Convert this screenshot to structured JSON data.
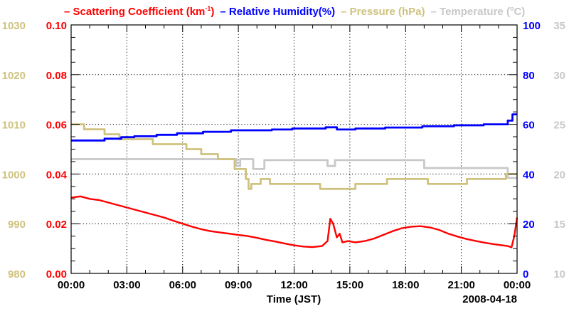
{
  "chart_data": {
    "type": "line",
    "title_parts": [
      {
        "key": "scatter",
        "text": "– Scattering Coefficient (km",
        "sup": "-1",
        "tail": ")",
        "color": "#ff0000"
      },
      {
        "key": "rh",
        "text": "– Relative Humidity(%)",
        "color": "#0000ff"
      },
      {
        "key": "pressure",
        "text": "– Pressure (hPa)",
        "color": "#cfc27e"
      },
      {
        "key": "temp",
        "text": "– Temperature (",
        "sup": "o",
        "tail": "C)",
        "color": "#c8c8c8"
      }
    ],
    "xlabel": "Time (JST)",
    "date_label": "2008-04-18",
    "x_range": [
      0,
      24
    ],
    "x_ticks": [
      0,
      3,
      6,
      9,
      12,
      15,
      18,
      21,
      24
    ],
    "x_tick_labels": [
      "00:00",
      "03:00",
      "06:00",
      "09:00",
      "12:00",
      "15:00",
      "18:00",
      "21:00",
      "00:00"
    ],
    "grid": true,
    "axes": {
      "pressure": {
        "side": "outer-left",
        "range": [
          980,
          1030
        ],
        "ticks": [
          980,
          990,
          1000,
          1010,
          1020,
          1030
        ],
        "labels": [
          "980",
          "990",
          "1000",
          "1010",
          "1020",
          "1030"
        ],
        "color": "#cfc27e"
      },
      "scatter": {
        "side": "inner-left",
        "range": [
          0,
          0.1
        ],
        "ticks": [
          0,
          0.02,
          0.04,
          0.06,
          0.08,
          0.1
        ],
        "labels": [
          "0.00",
          "0.02",
          "0.04",
          "0.06",
          "0.08",
          "0.10"
        ],
        "color": "#ff0000"
      },
      "rh": {
        "side": "inner-right",
        "range": [
          0,
          100
        ],
        "ticks": [
          0,
          20,
          40,
          60,
          80,
          100
        ],
        "labels": [
          "0",
          "20",
          "40",
          "60",
          "80",
          "100"
        ],
        "color": "#0000ff"
      },
      "temp": {
        "side": "outer-right",
        "range": [
          10,
          35
        ],
        "ticks": [
          10,
          15,
          20,
          25,
          30,
          35
        ],
        "labels": [
          "10",
          "15",
          "20",
          "25",
          "30",
          "35"
        ],
        "color": "#c8c8c8"
      }
    },
    "series": [
      {
        "name": "Temperature (C)",
        "axis": "temp",
        "color": "#c8c8c8",
        "x": [
          0,
          8.9,
          8.9,
          9.1,
          9.1,
          9.8,
          9.8,
          10.4,
          10.4,
          13.8,
          13.8,
          14.2,
          14.2,
          19.0,
          19.0,
          23.5,
          23.5,
          24.0
        ],
        "y": [
          21.5,
          21.5,
          20.8,
          20.8,
          21.5,
          21.5,
          20.5,
          20.5,
          21.4,
          21.4,
          20.8,
          20.8,
          21.4,
          21.4,
          20.6,
          20.6,
          19.6,
          19.6
        ]
      },
      {
        "name": "Pressure (hPa)",
        "axis": "pressure",
        "color": "#cfc27e",
        "x": [
          0,
          0.7,
          0.7,
          1.8,
          1.8,
          2.6,
          2.6,
          4.4,
          4.4,
          6.2,
          6.2,
          7.0,
          7.0,
          7.9,
          7.9,
          8.8,
          8.8,
          9.4,
          9.4,
          9.55,
          9.55,
          9.7,
          9.7,
          10.2,
          10.2,
          10.4,
          10.4,
          10.7,
          10.7,
          12.0,
          12.0,
          13.4,
          13.4,
          15.3,
          15.3,
          17.0,
          17.0,
          19.2,
          19.2,
          21.3,
          21.3,
          23.4,
          23.4,
          24.0
        ],
        "y": [
          1010,
          1010,
          1009,
          1009,
          1008,
          1008,
          1007,
          1007,
          1006,
          1006,
          1005,
          1005,
          1004,
          1004,
          1003,
          1003,
          1001,
          1001,
          999,
          999,
          997,
          997,
          998,
          998,
          999,
          999,
          999,
          999,
          998,
          998,
          998,
          998,
          997,
          997,
          998,
          998,
          999,
          999,
          998,
          998,
          999,
          999,
          1000,
          1000
        ]
      },
      {
        "name": "Relative Humidity(%)",
        "axis": "rh",
        "color": "#0000ff",
        "x": [
          0,
          1.8,
          1.8,
          2.7,
          2.7,
          3.4,
          3.4,
          4.6,
          4.6,
          5.7,
          5.7,
          7.1,
          7.1,
          8.6,
          8.6,
          10.8,
          10.8,
          11.9,
          11.9,
          13.7,
          13.7,
          14.3,
          14.3,
          15.3,
          15.3,
          16.9,
          16.9,
          18.9,
          18.9,
          20.6,
          20.6,
          22.2,
          22.2,
          23.5,
          23.5,
          23.75,
          23.75,
          24.0
        ],
        "y": [
          53.5,
          53.5,
          54.2,
          54.2,
          54.8,
          54.8,
          55.2,
          55.2,
          55.8,
          55.8,
          56.4,
          56.4,
          57.0,
          57.0,
          57.6,
          57.6,
          57.9,
          57.9,
          58.3,
          58.3,
          58.8,
          58.8,
          57.9,
          57.9,
          58.3,
          58.3,
          58.7,
          58.7,
          59.2,
          59.2,
          59.6,
          59.6,
          60.0,
          60.0,
          61.5,
          61.5,
          64.0,
          64.0
        ]
      },
      {
        "name": "Scattering Coefficient (km-1)",
        "axis": "scatter",
        "color": "#ff0000",
        "x": [
          0,
          0.5,
          1.0,
          1.5,
          2.0,
          2.5,
          3.0,
          3.5,
          4.0,
          4.5,
          5.0,
          5.5,
          6.0,
          6.5,
          7.0,
          7.5,
          8.0,
          8.5,
          9.0,
          9.5,
          10.0,
          10.5,
          11.0,
          11.5,
          12.0,
          12.5,
          13.0,
          13.5,
          13.8,
          13.95,
          14.1,
          14.3,
          14.45,
          14.6,
          14.9,
          15.3,
          15.8,
          16.3,
          16.8,
          17.3,
          17.8,
          18.3,
          18.8,
          19.3,
          19.8,
          20.3,
          20.8,
          21.3,
          21.8,
          22.3,
          22.8,
          23.2,
          23.5,
          23.7,
          23.85,
          24.0
        ],
        "y": [
          0.0305,
          0.031,
          0.03,
          0.0295,
          0.0285,
          0.0275,
          0.0265,
          0.0255,
          0.0245,
          0.0235,
          0.0225,
          0.0212,
          0.02,
          0.0188,
          0.0178,
          0.017,
          0.0165,
          0.016,
          0.0155,
          0.015,
          0.0143,
          0.0135,
          0.0128,
          0.012,
          0.0113,
          0.0108,
          0.0106,
          0.011,
          0.013,
          0.022,
          0.02,
          0.0145,
          0.016,
          0.0125,
          0.013,
          0.0125,
          0.013,
          0.014,
          0.0155,
          0.017,
          0.0182,
          0.0188,
          0.019,
          0.0185,
          0.0175,
          0.016,
          0.0148,
          0.0138,
          0.013,
          0.0123,
          0.0117,
          0.0113,
          0.011,
          0.0105,
          0.015,
          0.0225
        ]
      }
    ]
  }
}
